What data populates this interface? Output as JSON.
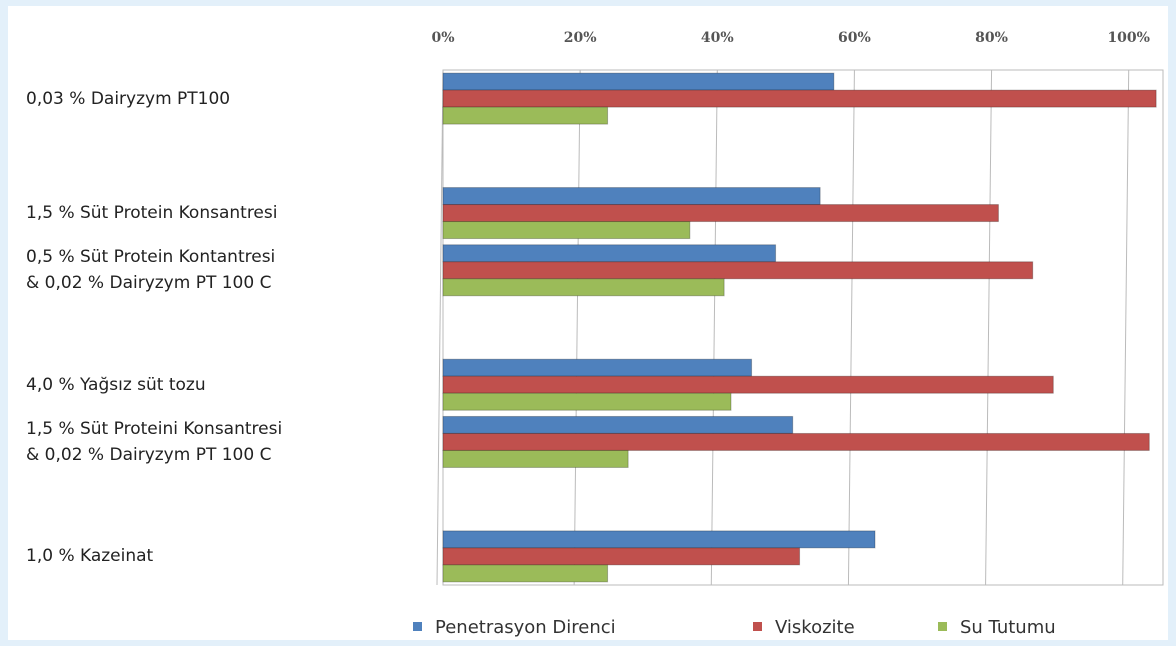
{
  "chart_data": {
    "type": "barh",
    "categories": [
      "0,03 %  Dairyzym  PT100",
      null,
      "1,5 % Süt Protein Konsantresi",
      "0,5 % Süt Protein Kontantresi\n& 0,02 % Dairyzym PT 100 C",
      null,
      "4,0 % Yağsız süt tozu",
      "1,5 % Süt Proteini Konsantresi\n& 0,02 %  Dairyzym PT 100 C",
      null,
      "1,0 % Kazeinat"
    ],
    "series": [
      {
        "name": "Penetrasyon Direnci",
        "color": "#4f81bd",
        "values": [
          57,
          null,
          55,
          48.5,
          null,
          45,
          51,
          null,
          63
        ]
      },
      {
        "name": "Viskozite",
        "color": "#c0504d",
        "values": [
          104,
          null,
          81,
          86,
          null,
          89,
          103,
          null,
          52
        ]
      },
      {
        "name": "Su Tutumu",
        "color": "#9bbb59",
        "values": [
          24,
          null,
          36,
          41,
          null,
          42,
          27,
          null,
          24
        ]
      }
    ],
    "xlim": [
      0,
      105
    ],
    "xticks": [
      {
        "value": 0,
        "label": "0%"
      },
      {
        "value": 20,
        "label": "20%"
      },
      {
        "value": 40,
        "label": "40%"
      },
      {
        "value": 60,
        "label": "60%"
      },
      {
        "value": 80,
        "label": "80%"
      },
      {
        "value": 100,
        "label": "100%"
      }
    ],
    "grid": true,
    "legend": "bottom"
  }
}
